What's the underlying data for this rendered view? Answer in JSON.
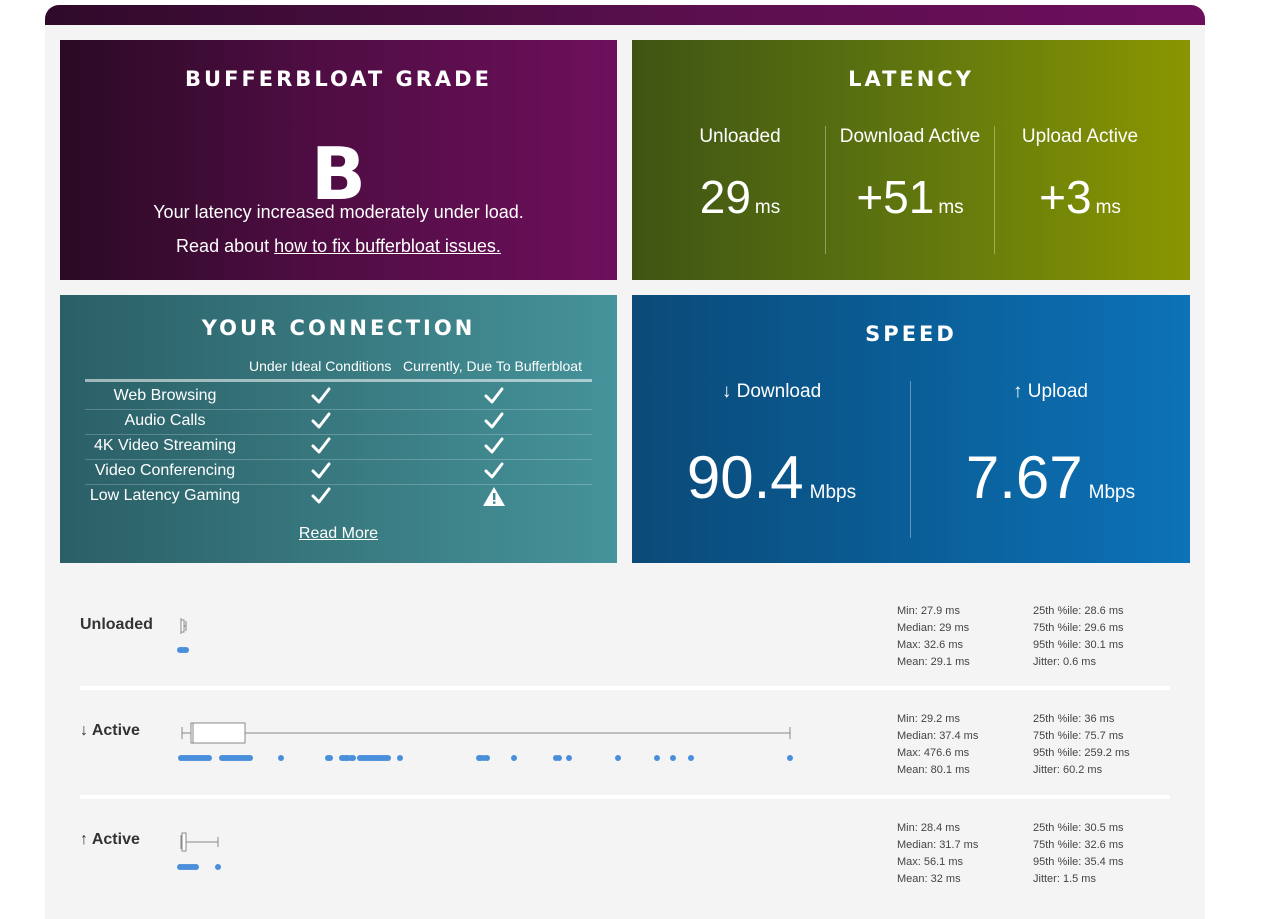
{
  "grade": {
    "title": "BUFFERBLOAT GRADE",
    "letter": "B",
    "message": "Your latency increased moderately under load.",
    "read_prefix": "Read about",
    "link_text": "how to fix bufferbloat issues."
  },
  "latency": {
    "title": "LATENCY",
    "columns": [
      {
        "label": "Unloaded",
        "value": "29",
        "unit": "ms"
      },
      {
        "label": "Download Active",
        "value": "+51",
        "unit": "ms"
      },
      {
        "label": "Upload Active",
        "value": "+3",
        "unit": "ms"
      }
    ]
  },
  "connection": {
    "title": "YOUR CONNECTION",
    "col_ideal": "Under Ideal Conditions",
    "col_current": "Currently, Due To Bufferbloat",
    "rows": [
      {
        "label": "Web Browsing",
        "ideal": "check",
        "current": "check"
      },
      {
        "label": "Audio Calls",
        "ideal": "check",
        "current": "check"
      },
      {
        "label": "4K Video Streaming",
        "ideal": "check",
        "current": "check"
      },
      {
        "label": "Video Conferencing",
        "ideal": "check",
        "current": "check"
      },
      {
        "label": "Low Latency Gaming",
        "ideal": "check",
        "current": "warning"
      }
    ],
    "read_more": "Read More"
  },
  "speed": {
    "title": "SPEED",
    "download": {
      "label": "↓ Download",
      "value": "90.4",
      "unit": "Mbps"
    },
    "upload": {
      "label": "↑ Upload",
      "value": "7.67",
      "unit": "Mbps"
    }
  },
  "stats": [
    {
      "title": "Unloaded",
      "left": [
        "Min: 27.9 ms",
        "Median: 29 ms",
        "Max: 32.6 ms",
        "Mean: 29.1 ms"
      ],
      "right": [
        "25th %ile: 28.6 ms",
        "75th %ile: 29.6 ms",
        "95th %ile: 30.1 ms",
        "Jitter: 0.6 ms"
      ]
    },
    {
      "title": "↓ Active",
      "left": [
        "Min: 29.2 ms",
        "Median: 37.4 ms",
        "Max: 476.6 ms",
        "Mean: 80.1 ms"
      ],
      "right": [
        "25th %ile: 36 ms",
        "75th %ile: 75.7 ms",
        "95th %ile: 259.2 ms",
        "Jitter: 60.2 ms"
      ]
    },
    {
      "title": "↑ Active",
      "left": [
        "Min: 28.4 ms",
        "Median: 31.7 ms",
        "Max: 56.1 ms",
        "Mean: 32 ms"
      ],
      "right": [
        "25th %ile: 30.5 ms",
        "75th %ile: 32.6 ms",
        "95th %ile: 35.4 ms",
        "Jitter: 1.5 ms"
      ]
    }
  ],
  "colors": {
    "grade": "#4e0d42",
    "latency": "#5f760f",
    "connection": "#38797f",
    "speed": "#0a5e97",
    "dots": "#4a8fdc"
  }
}
